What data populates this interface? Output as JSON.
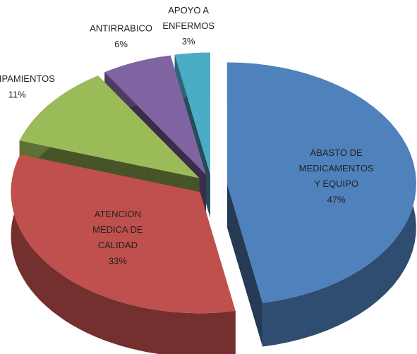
{
  "chart_data": {
    "type": "pie",
    "categories": [
      "ABASTO DE\nMEDICAMENTOS\nY EQUIPO",
      "ATENCION\nMEDICA DE\nCALIDAD",
      "EQUIPAMIENTOS",
      "ANTIRRABICO",
      "APOYO A\nENFERMOS"
    ],
    "values": [
      47,
      33,
      11,
      6,
      3
    ],
    "value_labels": [
      "47%",
      "33%",
      "11%",
      "6%",
      "3%"
    ],
    "colors": [
      "#4f81bd",
      "#c0504d",
      "#9bbb59",
      "#8064a2",
      "#4bacc6"
    ]
  }
}
